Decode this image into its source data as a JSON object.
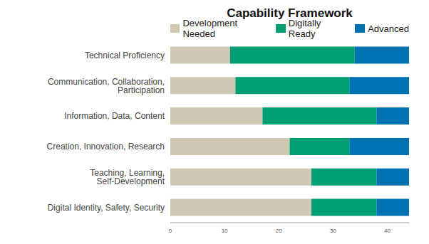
{
  "chart_data": {
    "type": "bar",
    "title": "Capability Framework",
    "orientation": "horizontal",
    "stacked": true,
    "legend": "top",
    "grid": false,
    "categories": [
      "Technical Proficiency",
      "Communication, Collaboration, Participation",
      "Information, Data, Content",
      "Creation, Innovation, Research",
      "Teaching, Learning, Self-Development",
      "Digital Identity, Safety, Security"
    ],
    "series": [
      {
        "name": "Development Needed",
        "color": "#cfc9b4",
        "values": [
          11,
          12,
          17,
          22,
          26,
          26
        ]
      },
      {
        "name": "Digitally Ready",
        "color": "#009e73",
        "values": [
          23,
          21,
          21,
          11,
          12,
          12
        ]
      },
      {
        "name": "Advanced",
        "color": "#0072b2",
        "values": [
          10,
          11,
          6,
          11,
          6,
          6
        ]
      }
    ],
    "xlim": [
      0,
      44
    ],
    "xticks": [
      0,
      10,
      20,
      30,
      40
    ]
  }
}
